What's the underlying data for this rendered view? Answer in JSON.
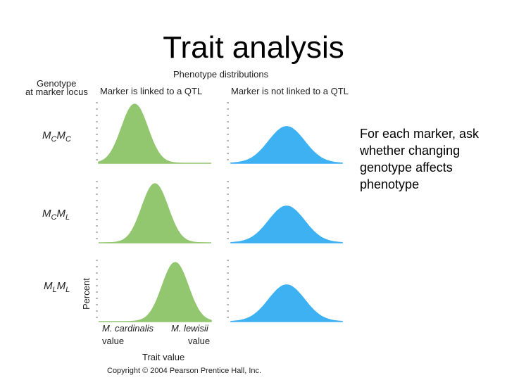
{
  "slide": {
    "title": "Trait analysis",
    "note": "For each marker, ask whether changing genotype affects phenotype"
  },
  "figure": {
    "header": "Phenotype distributions",
    "genotype_label_line1": "Genotype",
    "genotype_label_line2": "at marker locus",
    "columns": {
      "linked": "Marker is linked to a QTL",
      "not_linked": "Marker is not linked to a QTL"
    },
    "rows": [
      {
        "geno": "M",
        "a1": "C",
        "a2": "C",
        "linked_peak": 0.32,
        "not_linked_peak": 0.5
      },
      {
        "geno": "M",
        "a1": "C",
        "a2": "L",
        "linked_peak": 0.5,
        "not_linked_peak": 0.5
      },
      {
        "geno": "M",
        "a1": "L",
        "a2": "L",
        "linked_peak": 0.68,
        "not_linked_peak": 0.5
      }
    ],
    "y_axis_label": "Percent",
    "x_axis_label": "Trait value",
    "left_value_line1": "M. cardinalis",
    "left_value_line2": "value",
    "right_value_line1": "M. lewisii",
    "right_value_line2": "value",
    "copyright": "Copyright © 2004 Pearson Prentice Hall, Inc.",
    "colors": {
      "linked": "#92c66f",
      "not_linked": "#3db1f2"
    }
  }
}
